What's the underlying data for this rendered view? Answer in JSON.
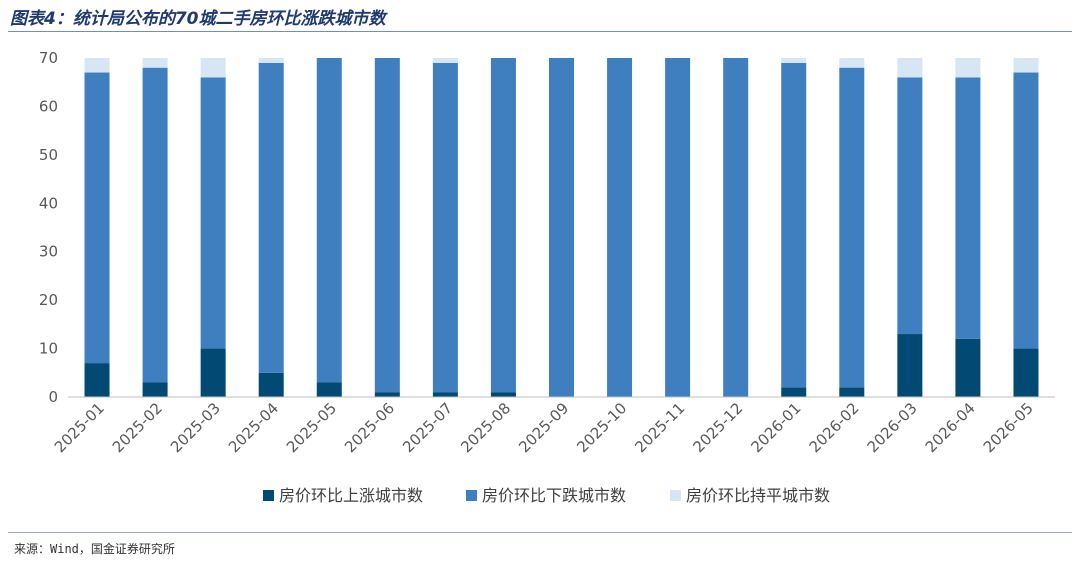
{
  "header": {
    "title": "图表4：统计局公布的70城二手房环比涨跌城市数"
  },
  "footer": {
    "source": "来源：Wind，国金证券研究所"
  },
  "chart_data": {
    "type": "bar",
    "stacked": true,
    "categories": [
      "2025-01",
      "2025-02",
      "2025-03",
      "2025-04",
      "2025-05",
      "2025-06",
      "2025-07",
      "2025-08",
      "2025-09",
      "2025-10",
      "2025-11",
      "2025-12",
      "2026-01",
      "2026-02",
      "2026-03",
      "2026-04",
      "2026-05"
    ],
    "series": [
      {
        "name": "房价环比上涨城市数",
        "color": "#024a73",
        "values": [
          7,
          3,
          10,
          5,
          3,
          1,
          1,
          1,
          0,
          0,
          0,
          0,
          2,
          2,
          13,
          12,
          10
        ]
      },
      {
        "name": "房价环比下跌城市数",
        "color": "#3f7fbf",
        "values": [
          60,
          65,
          56,
          64,
          67,
          69,
          68,
          69,
          70,
          70,
          70,
          70,
          67,
          66,
          53,
          54,
          57
        ]
      },
      {
        "name": "房价环比持平城市数",
        "color": "#d6e6f5",
        "values": [
          3,
          2,
          4,
          1,
          0,
          0,
          1,
          0,
          0,
          0,
          0,
          0,
          1,
          2,
          4,
          4,
          3
        ]
      }
    ],
    "yticks": [
      0,
      10,
      20,
      30,
      40,
      50,
      60,
      70
    ],
    "ylim": [
      0,
      70
    ],
    "xlabel": "",
    "ylabel": "",
    "grid": false,
    "legend_position": "bottom"
  }
}
